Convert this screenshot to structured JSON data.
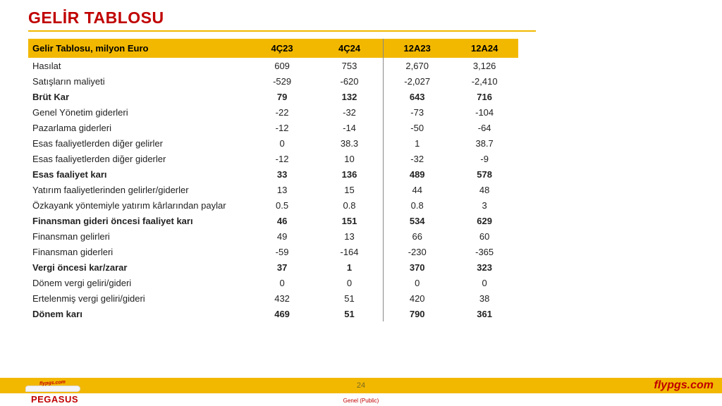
{
  "title": "GELİR TABLOSU",
  "table": {
    "header_label": "Gelir Tablosu, milyon Euro",
    "columns": [
      "4Ç23",
      "4Ç24",
      "12A23",
      "12A24"
    ],
    "rows": [
      {
        "label": "Hasılat",
        "vals": [
          "609",
          "753",
          "2,670",
          "3,126"
        ],
        "bold": false
      },
      {
        "label": "Satışların maliyeti",
        "vals": [
          "-529",
          "-620",
          "-2,027",
          "-2,410"
        ],
        "bold": false
      },
      {
        "label": "Brüt Kar",
        "vals": [
          "79",
          "132",
          "643",
          "716"
        ],
        "bold": true
      },
      {
        "label": "Genel Yönetim giderleri",
        "vals": [
          "-22",
          "-32",
          "-73",
          "-104"
        ],
        "bold": false
      },
      {
        "label": "Pazarlama giderleri",
        "vals": [
          "-12",
          "-14",
          "-50",
          "-64"
        ],
        "bold": false
      },
      {
        "label": "Esas faaliyetlerden diğer gelirler",
        "vals": [
          "0",
          "38.3",
          "1",
          "38.7"
        ],
        "bold": false
      },
      {
        "label": "Esas faaliyetlerden diğer giderler",
        "vals": [
          "-12",
          "10",
          "-32",
          "-9"
        ],
        "bold": false
      },
      {
        "label": "Esas faaliyet karı",
        "vals": [
          "33",
          "136",
          "489",
          "578"
        ],
        "bold": true
      },
      {
        "label": "Yatırım faaliyetlerinden gelirler/giderler",
        "vals": [
          "13",
          "15",
          "44",
          "48"
        ],
        "bold": false
      },
      {
        "label": "Özkayank yöntemiyle yatırım kârlarından paylar",
        "vals": [
          "0.5",
          "0.8",
          "0.8",
          "3"
        ],
        "bold": false
      },
      {
        "label": "Finansman gideri öncesi faaliyet karı",
        "vals": [
          "46",
          "151",
          "534",
          "629"
        ],
        "bold": true
      },
      {
        "label": "Finansman gelirleri",
        "vals": [
          "49",
          "13",
          "66",
          "60"
        ],
        "bold": false
      },
      {
        "label": "Finansman giderleri",
        "vals": [
          "-59",
          "-164",
          "-230",
          "-365"
        ],
        "bold": false
      },
      {
        "label": "Vergi öncesi kar/zarar",
        "vals": [
          "37",
          "1",
          "370",
          "323"
        ],
        "bold": true
      },
      {
        "label": "Dönem vergi geliri/gideri",
        "vals": [
          "0",
          "0",
          "0",
          "0"
        ],
        "bold": false
      },
      {
        "label": "Ertelenmiş vergi geliri/gideri",
        "vals": [
          "432",
          "51",
          "420",
          "38"
        ],
        "bold": false
      },
      {
        "label": "Dönem karı",
        "vals": [
          "469",
          "51",
          "790",
          "361"
        ],
        "bold": true
      }
    ],
    "separator_after_col": 2
  },
  "footer": {
    "page_number": "24",
    "brand": "flypgs.com",
    "classification": "Genel (Public)",
    "logo_text": "flypgs.com",
    "logo_name": "PEGASUS"
  },
  "colors": {
    "accent_yellow": "#f2b800",
    "accent_red": "#c00000",
    "text": "#222222"
  }
}
